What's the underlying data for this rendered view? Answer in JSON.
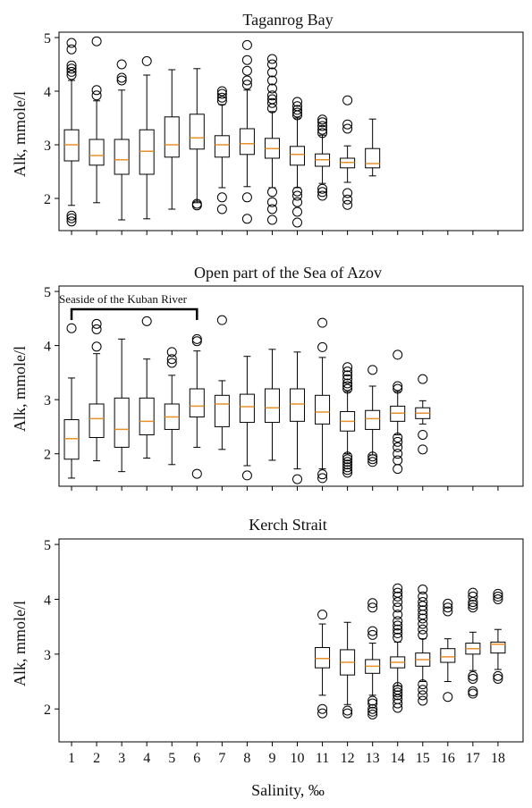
{
  "figure": {
    "xlabel": "Salinity, ‰",
    "colors": {
      "median": "#e8912b",
      "stroke": "#000000"
    }
  },
  "chart_data": [
    {
      "type": "box",
      "title": "Taganrog Bay",
      "ylabel": "Alk, mmole/l",
      "ylim": [
        1.4,
        5.1
      ],
      "yticks": [
        "2",
        "3",
        "4",
        "5"
      ],
      "xticks": [
        "1",
        "2",
        "3",
        "4",
        "5",
        "6",
        "7",
        "8",
        "9",
        "10",
        "11",
        "12",
        "13",
        "14",
        "15",
        "16",
        "17",
        "18"
      ],
      "boxes": [
        {
          "x": 1,
          "whislo": 1.87,
          "q1": 2.7,
          "med": 3.0,
          "q3": 3.28,
          "whishi": 4.2,
          "fliers": [
            1.57,
            1.63,
            1.68,
            4.3,
            4.36,
            4.42,
            4.48,
            4.78,
            4.9
          ]
        },
        {
          "x": 2,
          "whislo": 1.92,
          "q1": 2.62,
          "med": 2.8,
          "q3": 3.1,
          "whishi": 3.82,
          "fliers": [
            3.92,
            4.02,
            4.93
          ]
        },
        {
          "x": 3,
          "whislo": 1.6,
          "q1": 2.45,
          "med": 2.72,
          "q3": 3.1,
          "whishi": 4.02,
          "fliers": [
            4.2,
            4.25,
            4.5
          ]
        },
        {
          "x": 4,
          "whislo": 1.62,
          "q1": 2.45,
          "med": 2.88,
          "q3": 3.28,
          "whishi": 4.3,
          "fliers": [
            4.56
          ]
        },
        {
          "x": 5,
          "whislo": 1.8,
          "q1": 2.77,
          "med": 3.0,
          "q3": 3.52,
          "whishi": 4.4,
          "fliers": []
        },
        {
          "x": 6,
          "whislo": 1.92,
          "q1": 2.92,
          "med": 3.13,
          "q3": 3.57,
          "whishi": 4.42,
          "fliers": [
            1.87,
            1.9
          ]
        },
        {
          "x": 7,
          "whislo": 2.2,
          "q1": 2.77,
          "med": 3.0,
          "q3": 3.17,
          "whishi": 3.75,
          "fliers": [
            1.8,
            2.02,
            3.82,
            3.88,
            3.95,
            4.0
          ]
        },
        {
          "x": 8,
          "whislo": 2.22,
          "q1": 2.82,
          "med": 3.02,
          "q3": 3.3,
          "whishi": 4.02,
          "fliers": [
            1.62,
            2.02,
            4.12,
            4.2,
            4.38,
            4.58,
            4.86
          ]
        },
        {
          "x": 9,
          "whislo": 2.2,
          "q1": 2.75,
          "med": 2.93,
          "q3": 3.12,
          "whishi": 3.62,
          "fliers": [
            1.6,
            1.8,
            1.93,
            2.12,
            3.68,
            3.78,
            3.85,
            3.92,
            4.05,
            4.2,
            4.35,
            4.5,
            4.6
          ]
        },
        {
          "x": 10,
          "whislo": 2.2,
          "q1": 2.62,
          "med": 2.82,
          "q3": 2.97,
          "whishi": 3.5,
          "fliers": [
            1.55,
            1.75,
            1.93,
            2.05,
            2.13,
            3.55,
            3.6,
            3.65,
            3.72,
            3.8
          ]
        },
        {
          "x": 11,
          "whislo": 2.28,
          "q1": 2.6,
          "med": 2.72,
          "q3": 2.83,
          "whishi": 3.18,
          "fliers": [
            2.05,
            2.12,
            2.18,
            3.22,
            3.28,
            3.35,
            3.42,
            3.47
          ]
        },
        {
          "x": 12,
          "whislo": 2.3,
          "q1": 2.57,
          "med": 2.67,
          "q3": 2.75,
          "whishi": 2.98,
          "fliers": [
            1.88,
            1.98,
            2.1,
            3.3,
            3.38,
            3.83
          ]
        },
        {
          "x": 13,
          "whislo": 2.42,
          "q1": 2.57,
          "med": 2.65,
          "q3": 2.93,
          "whishi": 3.48,
          "fliers": []
        }
      ]
    },
    {
      "type": "box",
      "title": "Open part of the Sea of Azov",
      "ylabel": "Alk, mmole/l",
      "ylim": [
        1.4,
        5.1
      ],
      "yticks": [
        "2",
        "3",
        "4",
        "5"
      ],
      "xticks": [
        "1",
        "2",
        "3",
        "4",
        "5",
        "6",
        "7",
        "8",
        "9",
        "10",
        "11",
        "12",
        "13",
        "14",
        "15",
        "16",
        "17",
        "18"
      ],
      "annotation": {
        "text": "Seaside of the Kuban River",
        "from": 1,
        "to": 6
      },
      "boxes": [
        {
          "x": 1,
          "whislo": 1.55,
          "q1": 1.9,
          "med": 2.28,
          "q3": 2.63,
          "whishi": 3.4,
          "fliers": [
            4.32
          ]
        },
        {
          "x": 2,
          "whislo": 1.87,
          "q1": 2.3,
          "med": 2.65,
          "q3": 2.92,
          "whishi": 3.85,
          "fliers": [
            3.98,
            4.3,
            4.4
          ]
        },
        {
          "x": 3,
          "whislo": 1.67,
          "q1": 2.12,
          "med": 2.45,
          "q3": 3.03,
          "whishi": 4.12,
          "fliers": []
        },
        {
          "x": 4,
          "whislo": 1.92,
          "q1": 2.35,
          "med": 2.6,
          "q3": 3.03,
          "whishi": 3.75,
          "fliers": [
            4.45
          ]
        },
        {
          "x": 5,
          "whislo": 1.8,
          "q1": 2.45,
          "med": 2.68,
          "q3": 2.92,
          "whishi": 3.45,
          "fliers": [
            3.68,
            3.75,
            3.88
          ]
        },
        {
          "x": 6,
          "whislo": 2.12,
          "q1": 2.68,
          "med": 2.88,
          "q3": 3.2,
          "whishi": 3.9,
          "fliers": [
            1.63,
            4.08,
            4.12
          ]
        },
        {
          "x": 7,
          "whislo": 2.08,
          "q1": 2.5,
          "med": 2.92,
          "q3": 3.08,
          "whishi": 3.35,
          "fliers": [
            4.47
          ]
        },
        {
          "x": 8,
          "whislo": 1.78,
          "q1": 2.58,
          "med": 2.87,
          "q3": 3.1,
          "whishi": 3.8,
          "fliers": [
            1.6
          ]
        },
        {
          "x": 9,
          "whislo": 1.88,
          "q1": 2.58,
          "med": 2.85,
          "q3": 3.2,
          "whishi": 3.93,
          "fliers": []
        },
        {
          "x": 10,
          "whislo": 1.72,
          "q1": 2.6,
          "med": 2.92,
          "q3": 3.2,
          "whishi": 3.88,
          "fliers": [
            1.53
          ]
        },
        {
          "x": 11,
          "whislo": 1.72,
          "q1": 2.55,
          "med": 2.77,
          "q3": 3.08,
          "whishi": 3.78,
          "fliers": [
            1.55,
            1.62,
            3.97,
            4.42
          ]
        },
        {
          "x": 12,
          "whislo": 2.0,
          "q1": 2.42,
          "med": 2.6,
          "q3": 2.78,
          "whishi": 3.15,
          "fliers": [
            1.65,
            1.7,
            1.75,
            1.8,
            1.85,
            1.9,
            1.95,
            3.2,
            3.25,
            3.3,
            3.38,
            3.45,
            3.52,
            3.6
          ]
        },
        {
          "x": 13,
          "whislo": 1.98,
          "q1": 2.45,
          "med": 2.65,
          "q3": 2.8,
          "whishi": 3.25,
          "fliers": [
            1.85,
            1.9,
            1.95,
            3.55
          ]
        },
        {
          "x": 14,
          "whislo": 2.35,
          "q1": 2.6,
          "med": 2.75,
          "q3": 2.88,
          "whishi": 3.15,
          "fliers": [
            1.72,
            1.88,
            2.0,
            2.12,
            2.22,
            2.3,
            3.2,
            3.25,
            3.83
          ]
        },
        {
          "x": 15,
          "whislo": 2.55,
          "q1": 2.65,
          "med": 2.75,
          "q3": 2.85,
          "whishi": 2.98,
          "fliers": [
            2.08,
            2.35,
            3.38
          ]
        }
      ]
    },
    {
      "type": "box",
      "title": "Kerch Strait",
      "ylabel": "Alk, mmole/l",
      "ylim": [
        1.4,
        5.1
      ],
      "yticks": [
        "2",
        "3",
        "4",
        "5"
      ],
      "xticks": [
        "1",
        "2",
        "3",
        "4",
        "5",
        "6",
        "7",
        "8",
        "9",
        "10",
        "11",
        "12",
        "13",
        "14",
        "15",
        "16",
        "17",
        "18"
      ],
      "boxes": [
        {
          "x": 11,
          "whislo": 2.25,
          "q1": 2.75,
          "med": 2.92,
          "q3": 3.12,
          "whishi": 3.55,
          "fliers": [
            1.92,
            2.0,
            3.72
          ]
        },
        {
          "x": 12,
          "whislo": 2.08,
          "q1": 2.62,
          "med": 2.85,
          "q3": 3.08,
          "whishi": 3.58,
          "fliers": [
            1.92,
            1.97
          ]
        },
        {
          "x": 13,
          "whislo": 2.25,
          "q1": 2.65,
          "med": 2.78,
          "q3": 2.9,
          "whishi": 3.2,
          "fliers": [
            1.9,
            1.95,
            2.0,
            2.1,
            2.15,
            3.35,
            3.42,
            3.85,
            3.93
          ]
        },
        {
          "x": 14,
          "whislo": 2.42,
          "q1": 2.75,
          "med": 2.85,
          "q3": 2.95,
          "whishi": 3.22,
          "fliers": [
            2.02,
            2.1,
            2.18,
            2.25,
            2.3,
            2.35,
            2.4,
            3.3,
            3.38,
            3.45,
            3.52,
            3.6,
            3.72,
            3.85,
            3.95,
            4.05,
            4.12,
            4.2
          ]
        },
        {
          "x": 15,
          "whislo": 2.5,
          "q1": 2.78,
          "med": 2.9,
          "q3": 3.02,
          "whishi": 3.28,
          "fliers": [
            2.15,
            2.25,
            2.35,
            2.45,
            3.35,
            3.45,
            3.55,
            3.65,
            3.72,
            3.8,
            3.88,
            3.95,
            4.05,
            4.18
          ]
        },
        {
          "x": 16,
          "whislo": 2.5,
          "q1": 2.85,
          "med": 2.95,
          "q3": 3.1,
          "whishi": 3.28,
          "fliers": [
            2.22,
            3.78,
            3.85,
            3.92
          ]
        },
        {
          "x": 17,
          "whislo": 2.7,
          "q1": 3.0,
          "med": 3.1,
          "q3": 3.2,
          "whishi": 3.4,
          "fliers": [
            2.28,
            2.32,
            2.55,
            2.6,
            3.85,
            3.9,
            3.95,
            4.05,
            4.12
          ]
        },
        {
          "x": 18,
          "whislo": 2.72,
          "q1": 3.02,
          "med": 3.18,
          "q3": 3.22,
          "whishi": 3.45,
          "fliers": [
            2.55,
            2.6,
            4.0,
            4.05,
            4.1
          ]
        }
      ]
    }
  ]
}
